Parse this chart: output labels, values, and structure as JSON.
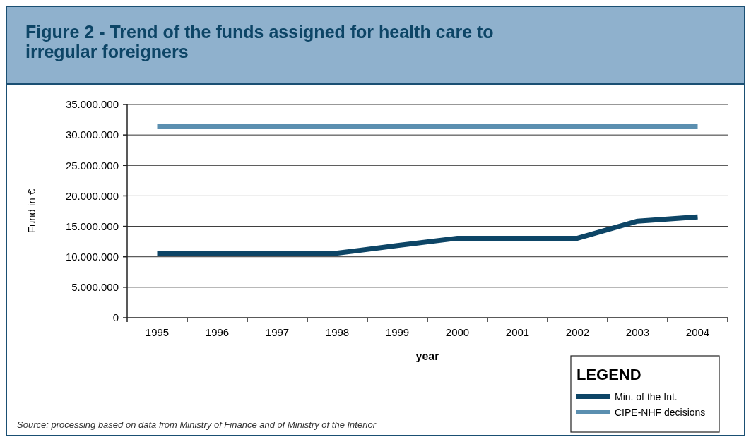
{
  "chart_data": {
    "type": "line",
    "title": "Figure 2 - Trend of the funds assigned for health care to irregular foreigners",
    "xlabel": "year",
    "ylabel": "Fund in €",
    "legend_title": "LEGEND",
    "categories": [
      "1995",
      "1996",
      "1997",
      "1998",
      "1999",
      "2000",
      "2001",
      "2002",
      "2003",
      "2004"
    ],
    "series": [
      {
        "name": "Min. of the Int.",
        "color": "#0d4566",
        "values": [
          10600000,
          10600000,
          10600000,
          10600000,
          11850000,
          13050000,
          13050000,
          13050000,
          15850000,
          16550000
        ]
      },
      {
        "name": "CIPE-NHF decisions",
        "color": "#5b8fb0",
        "values": [
          31400000,
          31400000,
          31400000,
          31400000,
          31400000,
          31400000,
          31400000,
          31400000,
          31400000,
          31400000
        ]
      }
    ],
    "ylim": [
      0,
      35000000
    ],
    "yticks": [
      {
        "value": 0,
        "label": "0"
      },
      {
        "value": 5000000,
        "label": "5.000.000"
      },
      {
        "value": 10000000,
        "label": "10.000.000"
      },
      {
        "value": 15000000,
        "label": "15.000.000"
      },
      {
        "value": 20000000,
        "label": "20.000.000"
      },
      {
        "value": 25000000,
        "label": "25.000.000"
      },
      {
        "value": 30000000,
        "label": "30.000.000"
      },
      {
        "value": 35000000,
        "label": "35.000.000"
      }
    ],
    "grid": "y",
    "legend": "bottom right",
    "marker": "none",
    "line_style": "solid",
    "annotations": [
      "Source: processing based on data from Ministry of Finance and of Ministry of the Interior"
    ]
  }
}
